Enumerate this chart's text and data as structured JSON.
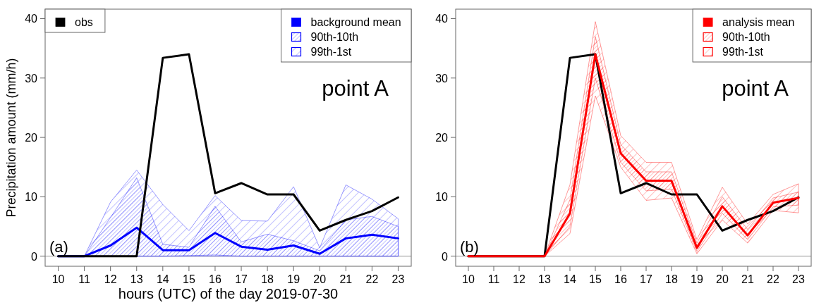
{
  "chart_data": [
    {
      "type": "line",
      "xlabel": "hours (UTC) of the day 2019-07-30",
      "ylabel": "Precipitation amount (mm/h)",
      "x": [
        10,
        11,
        12,
        13,
        14,
        15,
        16,
        17,
        18,
        19,
        20,
        21,
        22,
        23
      ],
      "xlim": [
        9.5,
        23.5
      ],
      "ylim": [
        -1.7,
        41.6
      ],
      "xticks": [
        10,
        11,
        12,
        13,
        14,
        15,
        16,
        17,
        18,
        19,
        20,
        21,
        22,
        23
      ],
      "yticks": [
        0,
        10,
        20,
        30,
        40
      ],
      "legend": "top right",
      "annotations": [
        "point A",
        "(a)"
      ],
      "ref_lines": [
        {
          "axis": "y",
          "value": 0,
          "color": "#aaaaaa"
        }
      ],
      "series": [
        {
          "name": "99th-1st",
          "type": "line",
          "color": "#0000ff",
          "values": [
            null,
            null,
            null,
            null,
            null,
            null,
            null,
            null,
            null,
            null,
            null,
            null,
            null,
            null
          ],
          "lower": [
            0,
            0,
            0,
            0,
            0,
            0.1,
            0.2,
            0,
            0,
            0,
            0,
            0,
            0,
            0
          ],
          "upper": [
            0,
            0,
            9.1,
            14.5,
            8.7,
            4.3,
            10.2,
            6.0,
            5.9,
            11.7,
            1.4,
            12.0,
            9.6,
            6.3
          ]
        },
        {
          "name": "90th-10th",
          "type": "line",
          "color": "#0000ff",
          "values": [
            null,
            null,
            null,
            null,
            null,
            null,
            null,
            null,
            null,
            null,
            null,
            null,
            null,
            null
          ],
          "lower": [
            0,
            0,
            0,
            0,
            0,
            0,
            0,
            0,
            0,
            0,
            0,
            0,
            0,
            0
          ],
          "upper": [
            0,
            0,
            6.5,
            13.2,
            2.0,
            1.5,
            8.4,
            2.4,
            3.7,
            2.6,
            0.9,
            6.1,
            6.7,
            5.0
          ]
        },
        {
          "name": "background mean",
          "type": "line",
          "color": "#0000ff",
          "values": [
            0,
            0,
            1.8,
            4.8,
            1.0,
            1.0,
            3.9,
            1.6,
            1.1,
            1.8,
            0.4,
            3.0,
            3.6,
            3.0
          ]
        },
        {
          "name": "obs",
          "type": "line",
          "color": "#000000",
          "values": [
            0,
            0,
            0,
            0,
            33.4,
            34,
            10.6,
            12.3,
            10.4,
            10.4,
            4.3,
            6.1,
            7.6,
            9.9
          ]
        }
      ]
    },
    {
      "type": "line",
      "x": [
        10,
        11,
        12,
        13,
        14,
        15,
        16,
        17,
        18,
        19,
        20,
        21,
        22,
        23
      ],
      "xlim": [
        9.5,
        23.5
      ],
      "ylim": [
        -1.7,
        41.6
      ],
      "xticks": [
        10,
        11,
        12,
        13,
        14,
        15,
        16,
        17,
        18,
        19,
        20,
        21,
        22,
        23
      ],
      "yticks": [
        0,
        10,
        20,
        30,
        40
      ],
      "legend": "top right",
      "annotations": [
        "point A",
        "(b)"
      ],
      "ref_lines": [
        {
          "axis": "y",
          "value": 0,
          "color": "#aaaaaa"
        }
      ],
      "series": [
        {
          "name": "99th-1st",
          "type": "line",
          "color": "#ff0000",
          "values": [
            null,
            null,
            null,
            null,
            null,
            null,
            null,
            null,
            null,
            null,
            null,
            null,
            null,
            null
          ],
          "lower": [
            0,
            0,
            0,
            0,
            3.8,
            27,
            15.0,
            9.4,
            9.8,
            0.4,
            6.1,
            2.2,
            7.7,
            7.3
          ],
          "upper": [
            0,
            0,
            0,
            0,
            12.0,
            39.5,
            20.3,
            15.8,
            15.8,
            2.8,
            11.6,
            5.4,
            10.4,
            12.2
          ]
        },
        {
          "name": "90th-10th",
          "type": "line",
          "color": "#ff0000",
          "values": [
            null,
            null,
            null,
            null,
            null,
            null,
            null,
            null,
            null,
            null,
            null,
            null,
            null,
            null
          ],
          "lower": [
            0,
            0,
            0,
            0,
            5.0,
            30,
            15.8,
            11.0,
            11.3,
            0.8,
            7.2,
            2.8,
            8.3,
            8.6
          ],
          "upper": [
            0,
            0,
            0,
            0,
            9.5,
            37,
            18.8,
            14.2,
            14.2,
            2.2,
            10.0,
            4.5,
            9.8,
            10.8
          ]
        },
        {
          "type": "line",
          "color": "#000000",
          "values": [
            0,
            0,
            0,
            0,
            33.4,
            34,
            10.6,
            12.3,
            10.4,
            10.4,
            4.3,
            6.1,
            7.6,
            9.9
          ]
        },
        {
          "name": "analysis mean",
          "type": "line",
          "color": "#ff0000",
          "values": [
            0,
            0,
            0,
            0,
            7.2,
            34,
            17.3,
            12.7,
            12.7,
            1.4,
            8.4,
            3.5,
            9.0,
            9.8
          ]
        }
      ]
    }
  ]
}
